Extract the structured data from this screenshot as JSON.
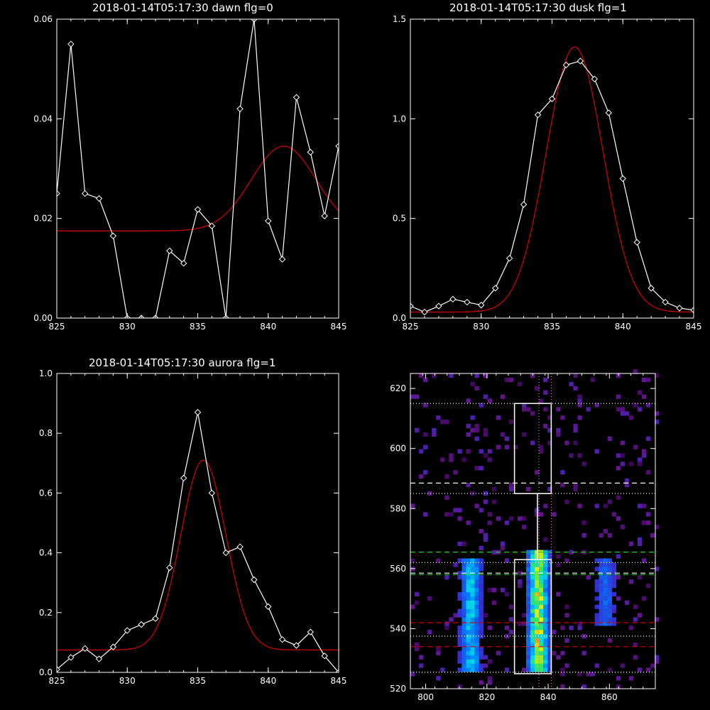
{
  "panels": {
    "dawn": {
      "title": "2018-01-14T05:17:30 dawn flg=0"
    },
    "dusk": {
      "title": "2018-01-14T05:17:30 dusk flg=1"
    },
    "aurora": {
      "title": "2018-01-14T05:17:30 aurora flg=1"
    },
    "image": {
      "title": ""
    }
  },
  "colors": {
    "data": "#ffffff",
    "fit": "#cc0000",
    "background": "#000000"
  },
  "chart_data": [
    {
      "id": "dawn",
      "type": "line",
      "xlim": [
        825,
        845
      ],
      "ylim": [
        0,
        0.06
      ],
      "xticks": [
        825,
        830,
        835,
        840,
        845
      ],
      "yticks": [
        0,
        0.02,
        0.04,
        0.06
      ],
      "ytick_labels": [
        "0.00",
        "0.02",
        "0.04",
        "0.06"
      ],
      "series": [
        {
          "kind": "data",
          "markers": "diamond",
          "x": [
            825,
            826,
            827,
            828,
            829,
            830,
            831,
            832,
            833,
            834,
            835,
            836,
            837,
            838,
            839,
            840,
            841,
            842,
            843,
            844,
            845
          ],
          "y": [
            0.025,
            0.055,
            0.025,
            0.024,
            0.0165,
            0,
            0,
            0,
            0.0135,
            0.011,
            0.0218,
            0.0185,
            0,
            0.042,
            0.06,
            0.0195,
            0.0118,
            0.0443,
            0.0333,
            0.0205,
            0.0345
          ]
        },
        {
          "kind": "fit",
          "model": "gaussian",
          "baseline": 0.0175,
          "amplitude": 0.017,
          "center": 841.1,
          "sigma": 2.3
        }
      ]
    },
    {
      "id": "dusk",
      "type": "line",
      "xlim": [
        825,
        845
      ],
      "ylim": [
        0,
        1.5
      ],
      "xticks": [
        825,
        830,
        835,
        840,
        845
      ],
      "yticks": [
        0,
        0.5,
        1.0,
        1.5
      ],
      "ytick_labels": [
        "0.0",
        "0.5",
        "1.0",
        "1.5"
      ],
      "series": [
        {
          "kind": "data",
          "markers": "diamond",
          "x": [
            825,
            826,
            827,
            828,
            829,
            830,
            831,
            832,
            833,
            834,
            835,
            836,
            837,
            838,
            839,
            840,
            841,
            842,
            843,
            844,
            845
          ],
          "y": [
            0.06,
            0.03,
            0.06,
            0.095,
            0.08,
            0.065,
            0.15,
            0.3,
            0.57,
            1.02,
            1.1,
            1.27,
            1.29,
            1.2,
            1.03,
            0.7,
            0.38,
            0.15,
            0.08,
            0.05,
            0.04
          ]
        },
        {
          "kind": "fit",
          "model": "gaussian",
          "baseline": 0.03,
          "amplitude": 1.33,
          "center": 836.6,
          "sigma": 2.0
        }
      ]
    },
    {
      "id": "aurora",
      "type": "line",
      "xlim": [
        825,
        845
      ],
      "ylim": [
        0,
        1.0
      ],
      "xticks": [
        825,
        830,
        835,
        840,
        845
      ],
      "yticks": [
        0,
        0.2,
        0.4,
        0.6,
        0.8,
        1.0
      ],
      "ytick_labels": [
        "0.0",
        "0.2",
        "0.4",
        "0.6",
        "0.8",
        "1.0"
      ],
      "series": [
        {
          "kind": "data",
          "markers": "diamond",
          "x": [
            825,
            826,
            827,
            828,
            829,
            830,
            831,
            832,
            833,
            834,
            835,
            836,
            837,
            838,
            839,
            840,
            841,
            842,
            843,
            844,
            845
          ],
          "y": [
            0.01,
            0.05,
            0.08,
            0.045,
            0.085,
            0.14,
            0.16,
            0.18,
            0.35,
            0.65,
            0.87,
            0.6,
            0.4,
            0.42,
            0.31,
            0.22,
            0.11,
            0.09,
            0.135,
            0.055,
            0
          ]
        },
        {
          "kind": "fit",
          "model": "gaussian",
          "baseline": 0.075,
          "amplitude": 0.635,
          "center": 835.4,
          "sigma": 1.6
        }
      ]
    },
    {
      "id": "image",
      "type": "heatmap",
      "xlim": [
        795,
        875
      ],
      "ylim": [
        520,
        625
      ],
      "xticks": [
        800,
        820,
        840,
        860
      ],
      "yticks": [
        520,
        540,
        560,
        580,
        600,
        620
      ],
      "colormap": "rainbow",
      "bright_columns": [
        {
          "center": 814,
          "y_from": 525,
          "y_to": 563,
          "strength": 0.55
        },
        {
          "center": 836,
          "y_from": 525,
          "y_to": 565,
          "strength": 1.0
        },
        {
          "center": 858,
          "y_from": 540,
          "y_to": 562,
          "strength": 0.3
        }
      ],
      "boxes": [
        {
          "x0": 829,
          "x1": 841,
          "y0": 585,
          "y1": 615,
          "color": "#ffffff"
        },
        {
          "x0": 829,
          "x1": 841,
          "y0": 525,
          "y1": 563,
          "color": "#ffffff"
        }
      ],
      "connector": {
        "x": 836.5,
        "y_from": 563,
        "y_to": 585
      },
      "hlines": [
        {
          "y": 615,
          "style": "dotted",
          "color": "#ffffff"
        },
        {
          "y": 588.5,
          "style": "dashed",
          "color": "#ffffff"
        },
        {
          "y": 585,
          "style": "dotted",
          "color": "#ffffff"
        },
        {
          "y": 565.5,
          "style": "dashed",
          "color": "#22cc22"
        },
        {
          "y": 562,
          "style": "dotted",
          "color": "#ffffff"
        },
        {
          "y": 558.5,
          "style": "dashed",
          "color": "#ffffff"
        },
        {
          "y": 558,
          "style": "dashed",
          "color": "#22cc22"
        },
        {
          "y": 542,
          "style": "dashed",
          "color": "#cc0000"
        },
        {
          "y": 537.5,
          "style": "dotted",
          "color": "#ffffff"
        },
        {
          "y": 534,
          "style": "dashed",
          "color": "#cc0000"
        },
        {
          "y": 525.5,
          "style": "dotted",
          "color": "#ffffff"
        }
      ],
      "vlines": [
        {
          "x": 837,
          "style": "dotted",
          "color": "#ff66ff"
        },
        {
          "x": 841,
          "style": "dotted",
          "color": "#ff66ff"
        }
      ]
    }
  ]
}
